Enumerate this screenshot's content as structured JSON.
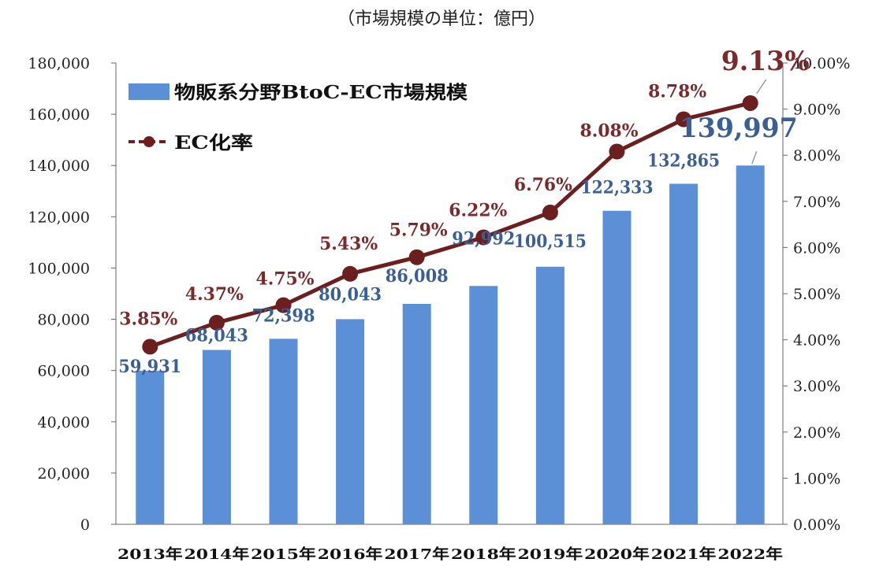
{
  "unit_note": "（市場規模の単位：億円）",
  "chart_data": {
    "type": "bar+line",
    "categories": [
      "2013年",
      "2014年",
      "2015年",
      "2016年",
      "2017年",
      "2018年",
      "2019年",
      "2020年",
      "2021年",
      "2022年"
    ],
    "series": [
      {
        "name": "物販系分野BtoC-EC市場規模",
        "type": "bar",
        "axis": "left",
        "values": [
          59931,
          68043,
          72398,
          80043,
          86008,
          92992,
          100515,
          122333,
          132865,
          139997
        ],
        "labels": [
          "59,931",
          "68,043",
          "72,398",
          "80,043",
          "86,008",
          "92,992",
          "100,515",
          "122,333",
          "132,865",
          "139,997"
        ],
        "color": "#5b8fd6",
        "label_color": "#3a5f94"
      },
      {
        "name": "EC化率",
        "type": "line",
        "axis": "right",
        "values": [
          3.85,
          4.37,
          4.75,
          5.43,
          5.79,
          6.22,
          6.76,
          8.08,
          8.78,
          9.13
        ],
        "labels": [
          "3.85%",
          "4.37%",
          "4.75%",
          "5.43%",
          "5.79%",
          "6.22%",
          "6.76%",
          "8.08%",
          "8.78%",
          "9.13%"
        ],
        "color": "#6b1f1f",
        "label_color": "#7a2a2a"
      }
    ],
    "y_left": {
      "range": [
        0,
        180000
      ],
      "ticks": [
        "0",
        "20,000",
        "40,000",
        "60,000",
        "80,000",
        "100,000",
        "120,000",
        "140,000",
        "160,000",
        "180,000"
      ]
    },
    "y_right": {
      "range": [
        0,
        10
      ],
      "ticks": [
        "0.00%",
        "1.00%",
        "2.00%",
        "3.00%",
        "4.00%",
        "5.00%",
        "6.00%",
        "7.00%",
        "8.00%",
        "9.00%",
        "10.00%"
      ]
    },
    "grid": false,
    "legend_position": "top-left"
  }
}
